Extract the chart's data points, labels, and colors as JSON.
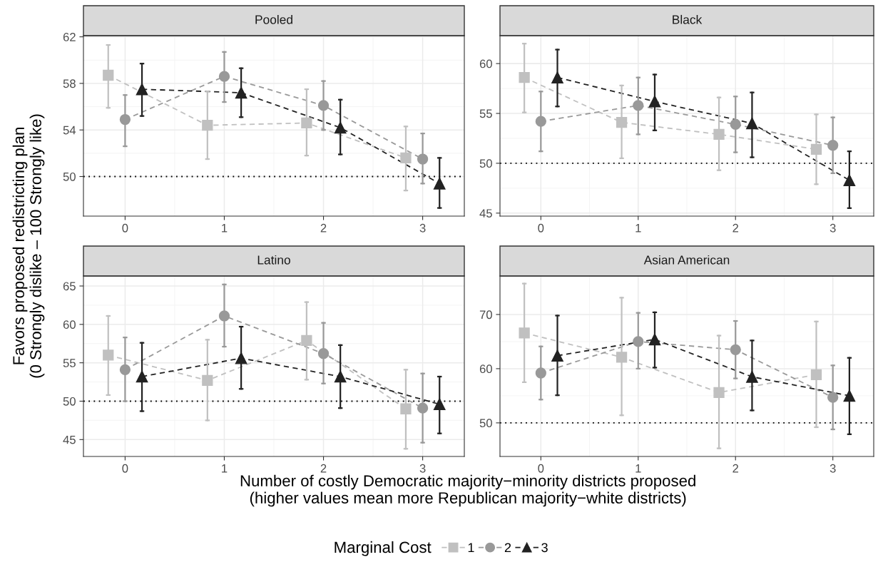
{
  "chart_data": [
    {
      "type": "line",
      "title": "Pooled",
      "ylabel": "Favors proposed redistricting plan\n(0 Strongly dislike – 100 Strongly like)",
      "xlabel": "Number of costly Democratic majority−minority districts proposed\n(higher values mean more Republican majority−white districts)",
      "legend_title": "Marginal Cost",
      "legend": "bottom",
      "grid": true,
      "line_style": "dashed",
      "xlim": [
        -0.42,
        3.42
      ],
      "xticks": [
        0,
        1,
        2,
        3
      ],
      "ylim": [
        46.6,
        62.1
      ],
      "yticks": [
        50,
        54,
        58,
        62
      ],
      "ref_lines": [
        {
          "axis": "y",
          "value": 50,
          "color": "#000000",
          "line_style": "dotted"
        }
      ],
      "series": [
        {
          "name": "1",
          "color": "#c0c0c0",
          "marker": "square",
          "x": [
            -0.17,
            0.83,
            1.83,
            2.83
          ],
          "values": [
            58.7,
            54.4,
            54.6,
            51.6
          ],
          "errors": [
            [
              55.9,
              61.3
            ],
            [
              51.5,
              57.3
            ],
            [
              51.8,
              57.5
            ],
            [
              48.8,
              54.3
            ]
          ]
        },
        {
          "name": "2",
          "color": "#999999",
          "marker": "circle",
          "x": [
            0,
            1,
            2,
            3
          ],
          "values": [
            54.9,
            58.6,
            56.1,
            51.5
          ],
          "errors": [
            [
              52.6,
              57.0
            ],
            [
              56.4,
              60.7
            ],
            [
              54.0,
              58.2
            ],
            [
              49.4,
              53.7
            ]
          ]
        },
        {
          "name": "3",
          "color": "#222222",
          "marker": "triangle",
          "x": [
            0.17,
            1.17,
            2.17,
            3.17
          ],
          "values": [
            57.5,
            57.2,
            54.2,
            49.4
          ],
          "errors": [
            [
              55.2,
              59.7
            ],
            [
              55.1,
              59.3
            ],
            [
              51.9,
              56.6
            ],
            [
              47.3,
              51.6
            ]
          ]
        }
      ]
    },
    {
      "type": "line",
      "title": "Black",
      "grid": true,
      "line_style": "dashed",
      "xlim": [
        -0.42,
        3.42
      ],
      "xticks": [
        0,
        1,
        2,
        3
      ],
      "ylim": [
        44.7,
        62.8
      ],
      "yticks": [
        45,
        50,
        55,
        60
      ],
      "ref_lines": [
        {
          "axis": "y",
          "value": 50,
          "color": "#000000",
          "line_style": "dotted"
        }
      ],
      "series": [
        {
          "color": "#c0c0c0",
          "marker": "square",
          "x": [
            -0.17,
            0.83,
            1.83,
            2.83
          ],
          "values": [
            58.6,
            54.1,
            52.9,
            51.4
          ],
          "errors": [
            [
              55.1,
              62.0
            ],
            [
              50.5,
              57.8
            ],
            [
              49.3,
              56.6
            ],
            [
              47.9,
              54.9
            ]
          ]
        },
        {
          "color": "#999999",
          "marker": "circle",
          "x": [
            0,
            1,
            2,
            3
          ],
          "values": [
            54.2,
            55.8,
            53.9,
            51.8
          ],
          "errors": [
            [
              51.2,
              57.2
            ],
            [
              52.9,
              58.6
            ],
            [
              51.1,
              56.7
            ],
            [
              49.0,
              54.6
            ]
          ]
        },
        {
          "color": "#222222",
          "marker": "triangle",
          "x": [
            0.17,
            1.17,
            2.17,
            3.17
          ],
          "values": [
            58.6,
            56.2,
            54.0,
            48.3
          ],
          "errors": [
            [
              55.7,
              61.4
            ],
            [
              53.3,
              58.9
            ],
            [
              50.6,
              57.1
            ],
            [
              45.5,
              51.2
            ]
          ]
        }
      ]
    },
    {
      "type": "line",
      "title": "Latino",
      "grid": true,
      "line_style": "dashed",
      "xlim": [
        -0.42,
        3.42
      ],
      "xticks": [
        0,
        1,
        2,
        3
      ],
      "ylim": [
        42.8,
        66.3
      ],
      "yticks": [
        45,
        50,
        55,
        60,
        65
      ],
      "ref_lines": [
        {
          "axis": "y",
          "value": 50,
          "color": "#000000",
          "line_style": "dotted"
        }
      ],
      "series": [
        {
          "color": "#c0c0c0",
          "marker": "square",
          "x": [
            -0.17,
            0.83,
            1.83,
            2.83
          ],
          "values": [
            56.0,
            52.7,
            57.9,
            49.0
          ],
          "errors": [
            [
              50.8,
              61.1
            ],
            [
              47.5,
              58.0
            ],
            [
              52.8,
              62.9
            ],
            [
              43.8,
              54.1
            ]
          ]
        },
        {
          "color": "#999999",
          "marker": "circle",
          "x": [
            0,
            1,
            2,
            3
          ],
          "values": [
            54.1,
            61.1,
            56.2,
            49.1
          ],
          "errors": [
            [
              50.0,
              58.3
            ],
            [
              57.1,
              65.2
            ],
            [
              52.3,
              60.2
            ],
            [
              44.6,
              53.6
            ]
          ]
        },
        {
          "color": "#222222",
          "marker": "triangle",
          "x": [
            0.17,
            1.17,
            2.17,
            3.17
          ],
          "values": [
            53.2,
            55.6,
            53.2,
            49.6
          ],
          "errors": [
            [
              48.7,
              57.6
            ],
            [
              51.6,
              59.7
            ],
            [
              49.1,
              57.3
            ],
            [
              45.8,
              53.2
            ]
          ]
        }
      ]
    },
    {
      "type": "line",
      "title": "Asian American",
      "grid": true,
      "line_style": "dashed",
      "xlim": [
        -0.42,
        3.42
      ],
      "xticks": [
        0,
        1,
        2,
        3
      ],
      "ylim": [
        43.8,
        77.1
      ],
      "yticks": [
        50,
        60,
        70
      ],
      "ref_lines": [
        {
          "axis": "y",
          "value": 50,
          "color": "#000000",
          "line_style": "dotted"
        }
      ],
      "series": [
        {
          "color": "#c0c0c0",
          "marker": "square",
          "x": [
            -0.17,
            0.83,
            1.83,
            2.83
          ],
          "values": [
            66.6,
            62.1,
            55.6,
            58.9
          ],
          "errors": [
            [
              57.5,
              75.7
            ],
            [
              51.4,
              73.1
            ],
            [
              45.3,
              66.1
            ],
            [
              49.2,
              68.7
            ]
          ]
        },
        {
          "color": "#999999",
          "marker": "circle",
          "x": [
            0,
            1,
            2,
            3
          ],
          "values": [
            59.2,
            65.0,
            63.5,
            54.7
          ],
          "errors": [
            [
              54.3,
              64.1
            ],
            [
              60.0,
              70.3
            ],
            [
              58.2,
              68.8
            ],
            [
              48.8,
              60.6
            ]
          ]
        },
        {
          "color": "#222222",
          "marker": "triangle",
          "x": [
            0.17,
            1.17,
            2.17,
            3.17
          ],
          "values": [
            62.4,
            65.4,
            58.5,
            55.0
          ],
          "errors": [
            [
              55.1,
              69.8
            ],
            [
              60.2,
              70.4
            ],
            [
              52.3,
              65.2
            ],
            [
              47.9,
              62.0
            ]
          ]
        }
      ]
    }
  ]
}
